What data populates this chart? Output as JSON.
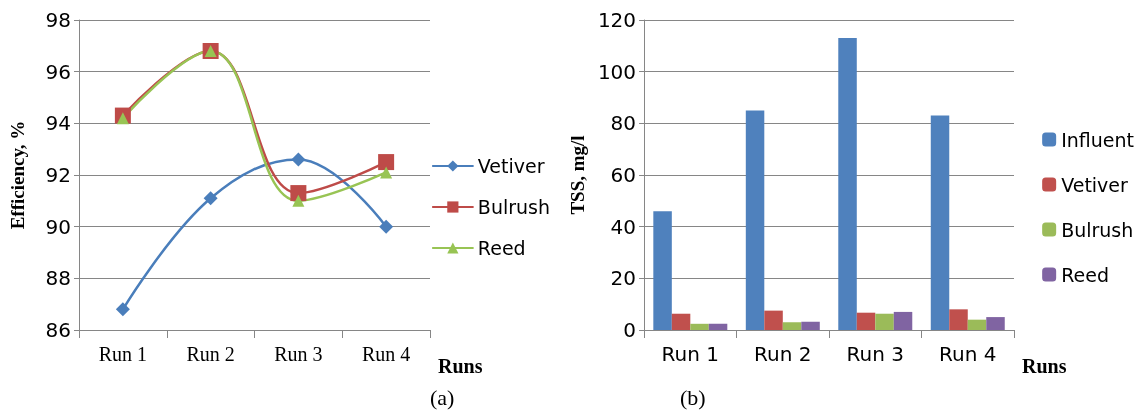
{
  "chart_data": [
    {
      "type": "line",
      "ylabel": "Efficiency, %",
      "xlabel": "Runs",
      "categories": [
        "Run 1",
        "Run 2",
        "Run 3",
        "Run 4"
      ],
      "series": [
        {
          "name": "Vetiver",
          "color": "#4a7ebb",
          "marker": "diamond",
          "values": [
            86.8,
            91.1,
            92.6,
            90.0
          ]
        },
        {
          "name": "Bulrush",
          "color": "#be4b48",
          "marker": "square",
          "values": [
            94.3,
            96.8,
            91.3,
            92.5
          ]
        },
        {
          "name": "Reed",
          "color": "#98c454",
          "marker": "triangle",
          "values": [
            94.2,
            96.8,
            91.0,
            92.1
          ]
        }
      ],
      "ylim": [
        86,
        98
      ],
      "yticks": [
        86,
        88,
        90,
        92,
        94,
        96,
        98
      ],
      "grid": "y",
      "legend": "right",
      "annotations": [
        "(a)"
      ]
    },
    {
      "type": "bar",
      "ylabel": "TSS, mg/l",
      "xlabel": "Runs",
      "categories": [
        "Run 1",
        "Run 2",
        "Run 3",
        "Run 4"
      ],
      "series": [
        {
          "name": "Influent",
          "color": "#4f81bd",
          "values": [
            46,
            85,
            113,
            83
          ]
        },
        {
          "name": "Vetiver",
          "color": "#c0504d",
          "values": [
            6.3,
            7.5,
            6.7,
            8
          ]
        },
        {
          "name": "Bulrush",
          "color": "#9bbb59",
          "values": [
            2.4,
            3,
            6.3,
            4
          ]
        },
        {
          "name": "Reed",
          "color": "#8064a2",
          "values": [
            2.4,
            3.2,
            7,
            5
          ]
        }
      ],
      "ylim": [
        0,
        120
      ],
      "yticks": [
        0,
        20,
        40,
        60,
        80,
        100,
        120
      ],
      "grid": "y",
      "legend": "right",
      "annotations": [
        "(b)"
      ]
    }
  ]
}
